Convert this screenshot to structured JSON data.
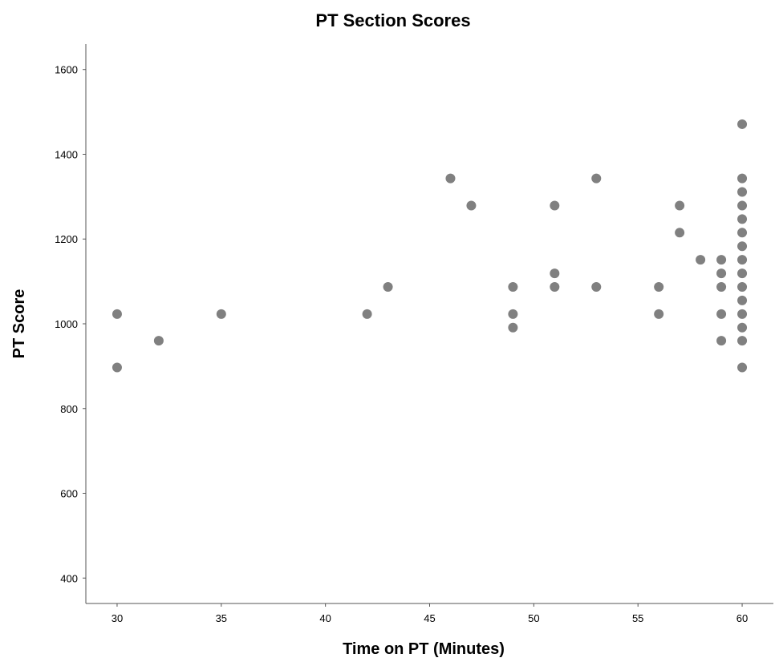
{
  "chart_data": {
    "type": "scatter",
    "title": "PT Section Scores",
    "xlabel": "Time on PT (Minutes)",
    "ylabel": "PT Score",
    "xlim": [
      28.5,
      61.5
    ],
    "ylim": [
      340,
      1660
    ],
    "xticks": [
      30,
      35,
      40,
      45,
      50,
      55,
      60
    ],
    "yticks": [
      400,
      600,
      800,
      1000,
      1200,
      1400,
      1600
    ],
    "grid": false,
    "marker_color": "#808080",
    "points": [
      {
        "x": 30,
        "y": 1023
      },
      {
        "x": 30,
        "y": 897
      },
      {
        "x": 32,
        "y": 960
      },
      {
        "x": 35,
        "y": 1023
      },
      {
        "x": 42,
        "y": 1023
      },
      {
        "x": 43,
        "y": 1087
      },
      {
        "x": 46,
        "y": 1343
      },
      {
        "x": 47,
        "y": 1279
      },
      {
        "x": 49,
        "y": 1087
      },
      {
        "x": 49,
        "y": 1023
      },
      {
        "x": 49,
        "y": 991
      },
      {
        "x": 51,
        "y": 1279
      },
      {
        "x": 51,
        "y": 1119
      },
      {
        "x": 51,
        "y": 1087
      },
      {
        "x": 53,
        "y": 1343
      },
      {
        "x": 53,
        "y": 1087
      },
      {
        "x": 56,
        "y": 1087
      },
      {
        "x": 56,
        "y": 1023
      },
      {
        "x": 57,
        "y": 1279
      },
      {
        "x": 57,
        "y": 1215
      },
      {
        "x": 58,
        "y": 1151
      },
      {
        "x": 59,
        "y": 1151
      },
      {
        "x": 59,
        "y": 1119
      },
      {
        "x": 59,
        "y": 1087
      },
      {
        "x": 59,
        "y": 1023
      },
      {
        "x": 59,
        "y": 960
      },
      {
        "x": 60,
        "y": 1471
      },
      {
        "x": 60,
        "y": 1343
      },
      {
        "x": 60,
        "y": 1311
      },
      {
        "x": 60,
        "y": 1279
      },
      {
        "x": 60,
        "y": 1247
      },
      {
        "x": 60,
        "y": 1215
      },
      {
        "x": 60,
        "y": 1183
      },
      {
        "x": 60,
        "y": 1151
      },
      {
        "x": 60,
        "y": 1119
      },
      {
        "x": 60,
        "y": 1087
      },
      {
        "x": 60,
        "y": 1055
      },
      {
        "x": 60,
        "y": 1023
      },
      {
        "x": 60,
        "y": 991
      },
      {
        "x": 60,
        "y": 960
      },
      {
        "x": 60,
        "y": 897
      }
    ]
  }
}
